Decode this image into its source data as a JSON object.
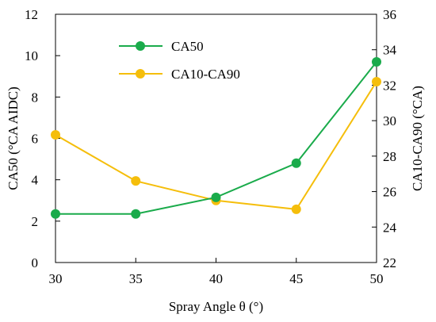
{
  "chart_data": {
    "type": "line",
    "xlabel": "Spray Angle θ (°)",
    "ylabel_left": "CA50 (°CA AIDC)",
    "ylabel_right": "CA10-CA90 (°CA)",
    "x": [
      30,
      35,
      40,
      45,
      50
    ],
    "xlim": [
      30,
      50
    ],
    "x_ticks": [
      "30",
      "35",
      "40",
      "45",
      "50"
    ],
    "ylim_left": [
      0,
      12
    ],
    "y_ticks_left": [
      "0",
      "2",
      "4",
      "6",
      "8",
      "10",
      "12"
    ],
    "ylim_right": [
      22,
      36
    ],
    "y_ticks_right": [
      "22",
      "24",
      "26",
      "28",
      "30",
      "32",
      "34",
      "36"
    ],
    "grid": false,
    "legend_position": "top-left",
    "series": [
      {
        "name": "CA50",
        "axis": "left",
        "color": "#1aab4b",
        "marker": "circle",
        "values": [
          2.35,
          2.35,
          3.15,
          4.8,
          9.7
        ]
      },
      {
        "name": "CA10-CA90",
        "axis": "right",
        "color": "#f5be0b",
        "marker": "circle",
        "values": [
          29.2,
          26.6,
          25.5,
          25.0,
          32.2
        ]
      }
    ]
  }
}
